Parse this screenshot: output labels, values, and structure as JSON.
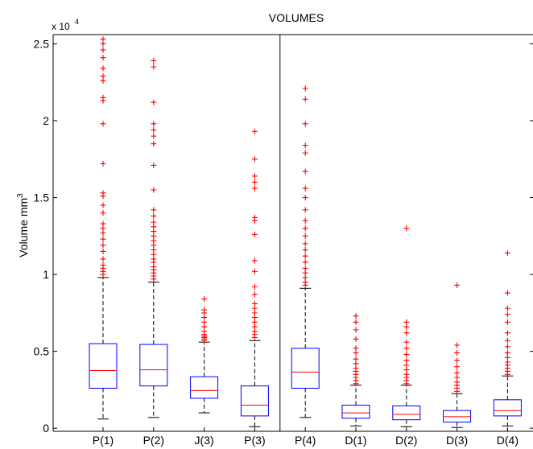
{
  "chart_data": {
    "type": "box",
    "title": "VOLUMES",
    "xlabel": "",
    "ylabel": "Volume mm",
    "ylabel_superscript": "3",
    "y_exponent_label": "x 10",
    "y_exponent_power": "4",
    "ylim": [
      -200,
      25600
    ],
    "yticks": [
      {
        "value": 0,
        "label": "0"
      },
      {
        "value": 5000,
        "label": "0.5"
      },
      {
        "value": 10000,
        "label": "1"
      },
      {
        "value": 15000,
        "label": "1.5"
      },
      {
        "value": 20000,
        "label": "2"
      },
      {
        "value": 25000,
        "label": "2.5"
      }
    ],
    "grid": false,
    "separator_after_index": 4,
    "colors": {
      "box": "#0000ff",
      "median": "#ff0000",
      "whisker": "#000000",
      "outlier": "#ff0000"
    },
    "boxes": [
      {
        "label": "P(1)",
        "whisker_low": 600,
        "q1": 2600,
        "median": 3750,
        "q3": 5500,
        "whisker_high": 9800,
        "outliers": [
          10000,
          10200,
          10400,
          10600,
          11000,
          11500,
          11900,
          12300,
          12700,
          13000,
          13300,
          14000,
          14500,
          15100,
          15300,
          17200,
          19800,
          21300,
          21500,
          22600,
          22900,
          23400,
          24100,
          24600,
          25000,
          25300
        ]
      },
      {
        "label": "P(2)",
        "whisker_low": 700,
        "q1": 2750,
        "median": 3800,
        "q3": 5450,
        "whisker_high": 9500,
        "outliers": [
          9700,
          9900,
          10100,
          10300,
          10500,
          10800,
          11000,
          11300,
          11600,
          11900,
          12200,
          12500,
          12800,
          13100,
          13400,
          13800,
          14200,
          15500,
          17100,
          18500,
          19000,
          19400,
          19800,
          21200,
          23500,
          23900
        ]
      },
      {
        "label": "J(3)",
        "whisker_low": 1000,
        "q1": 1950,
        "median": 2450,
        "q3": 3350,
        "whisker_high": 5600,
        "outliers": [
          5700,
          5800,
          5900,
          6000,
          6100,
          6300,
          6600,
          6900,
          7200,
          7500,
          7700,
          8400
        ]
      },
      {
        "label": "P(3)",
        "whisker_low": 100,
        "q1": 800,
        "median": 1500,
        "q3": 2750,
        "whisker_high": 5700,
        "outliers": [
          5900,
          6100,
          6300,
          6600,
          6900,
          7200,
          7500,
          7800,
          8100,
          8700,
          9200,
          10200,
          10900,
          12600,
          13500,
          13700,
          15600,
          16000,
          16400,
          17500,
          19300
        ]
      },
      {
        "label": "P(4)",
        "whisker_low": 700,
        "q1": 2600,
        "median": 3650,
        "q3": 5200,
        "whisker_high": 9100,
        "outliers": [
          9300,
          9500,
          9800,
          10100,
          10400,
          10800,
          11200,
          11600,
          12000,
          12500,
          13000,
          13500,
          14200,
          15000,
          15600,
          16700,
          17900,
          18400,
          19800,
          21400,
          22100
        ]
      },
      {
        "label": "D(1)",
        "whisker_low": 150,
        "q1": 650,
        "median": 1000,
        "q3": 1500,
        "whisker_high": 2800,
        "outliers": [
          2900,
          3100,
          3300,
          3500,
          3700,
          3900,
          4200,
          4500,
          4900,
          5200,
          5800,
          6400,
          6900,
          7300
        ]
      },
      {
        "label": "D(2)",
        "whisker_low": 100,
        "q1": 550,
        "median": 900,
        "q3": 1450,
        "whisker_high": 2800,
        "outliers": [
          2900,
          3100,
          3300,
          3500,
          3800,
          4100,
          4400,
          4800,
          5200,
          5600,
          6200,
          6600,
          6900,
          13000
        ]
      },
      {
        "label": "D(3)",
        "whisker_low": 50,
        "q1": 400,
        "median": 750,
        "q3": 1150,
        "whisker_high": 2250,
        "outliers": [
          2400,
          2600,
          2800,
          3000,
          3300,
          3600,
          4000,
          4400,
          4900,
          5400,
          9300
        ]
      },
      {
        "label": "D(4)",
        "whisker_low": 150,
        "q1": 800,
        "median": 1150,
        "q3": 1850,
        "whisker_high": 3400,
        "outliers": [
          3500,
          3700,
          3900,
          4100,
          4300,
          4600,
          4900,
          5300,
          5700,
          6200,
          6900,
          7400,
          7800,
          8800,
          11400
        ]
      }
    ]
  }
}
